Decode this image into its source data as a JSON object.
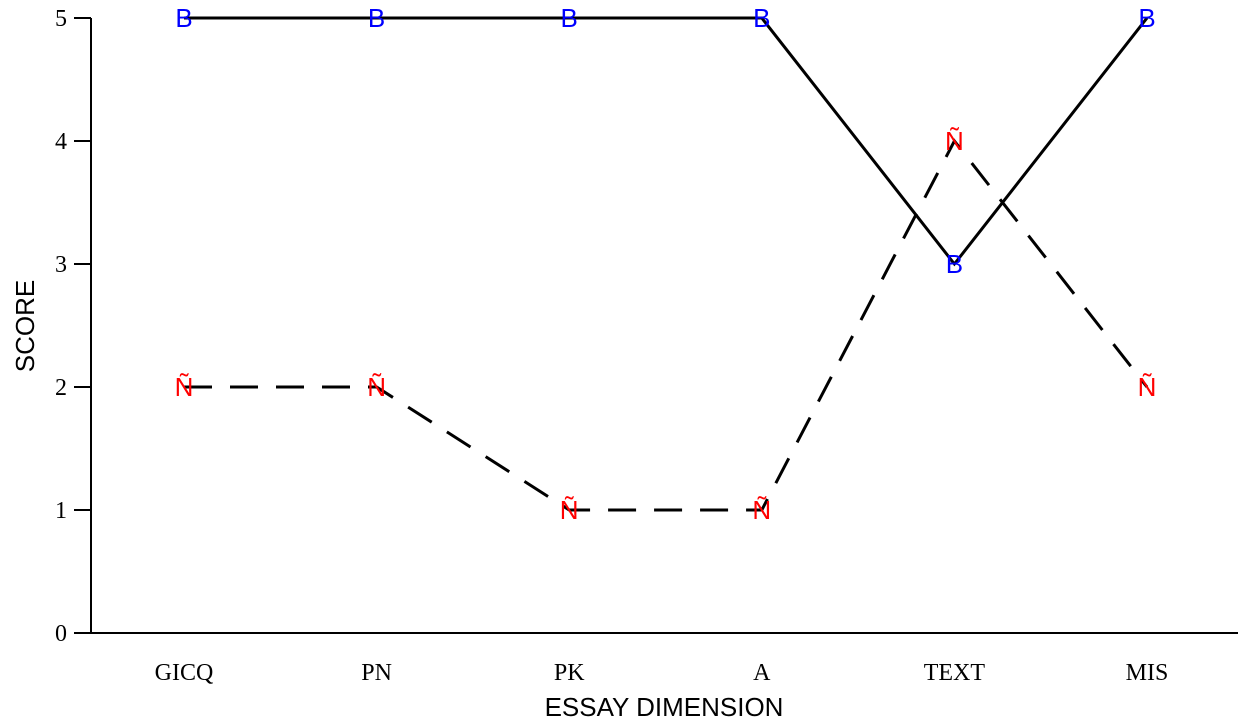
{
  "chart_data": {
    "type": "line",
    "categories": [
      "GICQ",
      "PN",
      "PK",
      "A",
      "TEXT",
      "MIS"
    ],
    "xlabel": "ESSAY DIMENSION",
    "ylabel": "SCORE",
    "ylim": [
      0,
      5
    ],
    "yticks": [
      "0",
      "1",
      "2",
      "3",
      "4",
      "5"
    ],
    "grid": false,
    "series": [
      {
        "marker": "B",
        "line_style": "solid",
        "line_color": "#000000",
        "marker_color": "#0000ff",
        "values": [
          5,
          5,
          5,
          5,
          3,
          5
        ]
      },
      {
        "marker": "Ñ",
        "line_style": "dashed",
        "line_color": "#000000",
        "marker_color": "#ff0000",
        "values": [
          2,
          2,
          1,
          1,
          4,
          2
        ]
      }
    ]
  }
}
